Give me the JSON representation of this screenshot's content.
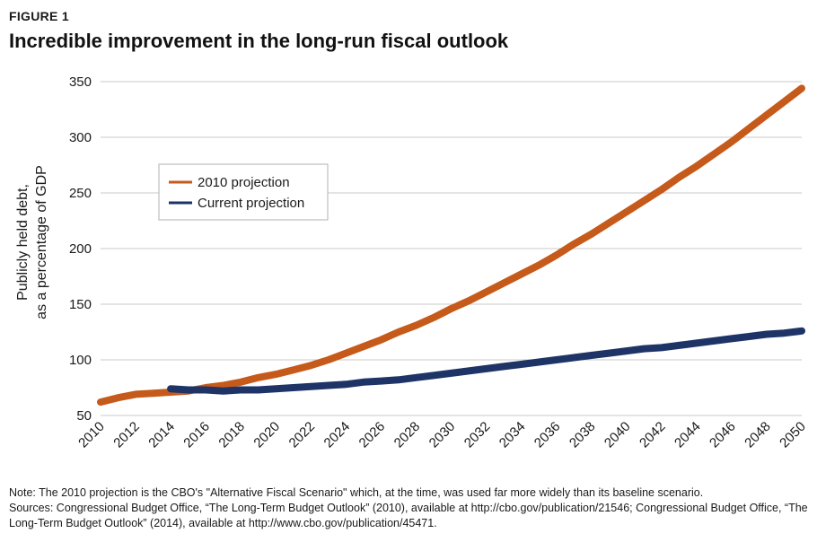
{
  "figure_label": "FIGURE 1",
  "title": "Incredible improvement in the long-run fiscal outlook",
  "note": {
    "line1": "Note: The 2010 projection is the CBO's \"Alternative Fiscal Scenario\" which, at the time, was used far more widely than its baseline scenario.",
    "line2": "Sources: Congressional Budget Office, “The Long-Term Budget Outlook” (2010), available at http://cbo.gov/publication/21546; Congressional Budget Office, “The Long-Term Budget Outlook” (2014), available at http://www.cbo.gov/publication/45471."
  },
  "chart_data": {
    "type": "line",
    "title": "Incredible improvement in the long-run fiscal outlook",
    "xlabel": "",
    "ylabel": "Publicly held debt, as a percentage of GDP",
    "ylabel_lines": [
      "Publicly held debt,",
      "as a percentage of GDP"
    ],
    "xlim": [
      2010,
      2050
    ],
    "ylim": [
      50,
      350
    ],
    "yticks": [
      50,
      100,
      150,
      200,
      250,
      300,
      350
    ],
    "xticks": [
      2010,
      2012,
      2014,
      2016,
      2018,
      2020,
      2022,
      2024,
      2026,
      2028,
      2030,
      2032,
      2034,
      2036,
      2038,
      2040,
      2042,
      2044,
      2046,
      2048,
      2050
    ],
    "grid": "horizontal",
    "legend_position": "upper-left",
    "series": [
      {
        "name": "2010 projection",
        "color": "#c55a1a",
        "points": [
          [
            2010,
            62
          ],
          [
            2011,
            66
          ],
          [
            2012,
            69
          ],
          [
            2013,
            70
          ],
          [
            2014,
            71
          ],
          [
            2015,
            72
          ],
          [
            2016,
            75
          ],
          [
            2017,
            77
          ],
          [
            2018,
            80
          ],
          [
            2019,
            84
          ],
          [
            2020,
            87
          ],
          [
            2021,
            91
          ],
          [
            2022,
            95
          ],
          [
            2023,
            100
          ],
          [
            2024,
            106
          ],
          [
            2025,
            112
          ],
          [
            2026,
            118
          ],
          [
            2027,
            125
          ],
          [
            2028,
            131
          ],
          [
            2029,
            138
          ],
          [
            2030,
            146
          ],
          [
            2031,
            153
          ],
          [
            2032,
            161
          ],
          [
            2033,
            169
          ],
          [
            2034,
            177
          ],
          [
            2035,
            185
          ],
          [
            2036,
            194
          ],
          [
            2037,
            204
          ],
          [
            2038,
            213
          ],
          [
            2039,
            223
          ],
          [
            2040,
            233
          ],
          [
            2041,
            243
          ],
          [
            2042,
            253
          ],
          [
            2043,
            264
          ],
          [
            2044,
            274
          ],
          [
            2045,
            285
          ],
          [
            2046,
            296
          ],
          [
            2047,
            308
          ],
          [
            2048,
            320
          ],
          [
            2049,
            332
          ],
          [
            2050,
            344
          ]
        ]
      },
      {
        "name": "Current projection",
        "color": "#1e3366",
        "points": [
          [
            2014,
            74
          ],
          [
            2015,
            73
          ],
          [
            2016,
            73
          ],
          [
            2017,
            72
          ],
          [
            2018,
            73
          ],
          [
            2019,
            73
          ],
          [
            2020,
            74
          ],
          [
            2021,
            75
          ],
          [
            2022,
            76
          ],
          [
            2023,
            77
          ],
          [
            2024,
            78
          ],
          [
            2025,
            80
          ],
          [
            2026,
            81
          ],
          [
            2027,
            82
          ],
          [
            2028,
            84
          ],
          [
            2029,
            86
          ],
          [
            2030,
            88
          ],
          [
            2031,
            90
          ],
          [
            2032,
            92
          ],
          [
            2033,
            94
          ],
          [
            2034,
            96
          ],
          [
            2035,
            98
          ],
          [
            2036,
            100
          ],
          [
            2037,
            102
          ],
          [
            2038,
            104
          ],
          [
            2039,
            106
          ],
          [
            2040,
            108
          ],
          [
            2041,
            110
          ],
          [
            2042,
            111
          ],
          [
            2043,
            113
          ],
          [
            2044,
            115
          ],
          [
            2045,
            117
          ],
          [
            2046,
            119
          ],
          [
            2047,
            121
          ],
          [
            2048,
            123
          ],
          [
            2049,
            124
          ],
          [
            2050,
            126
          ]
        ]
      }
    ]
  }
}
